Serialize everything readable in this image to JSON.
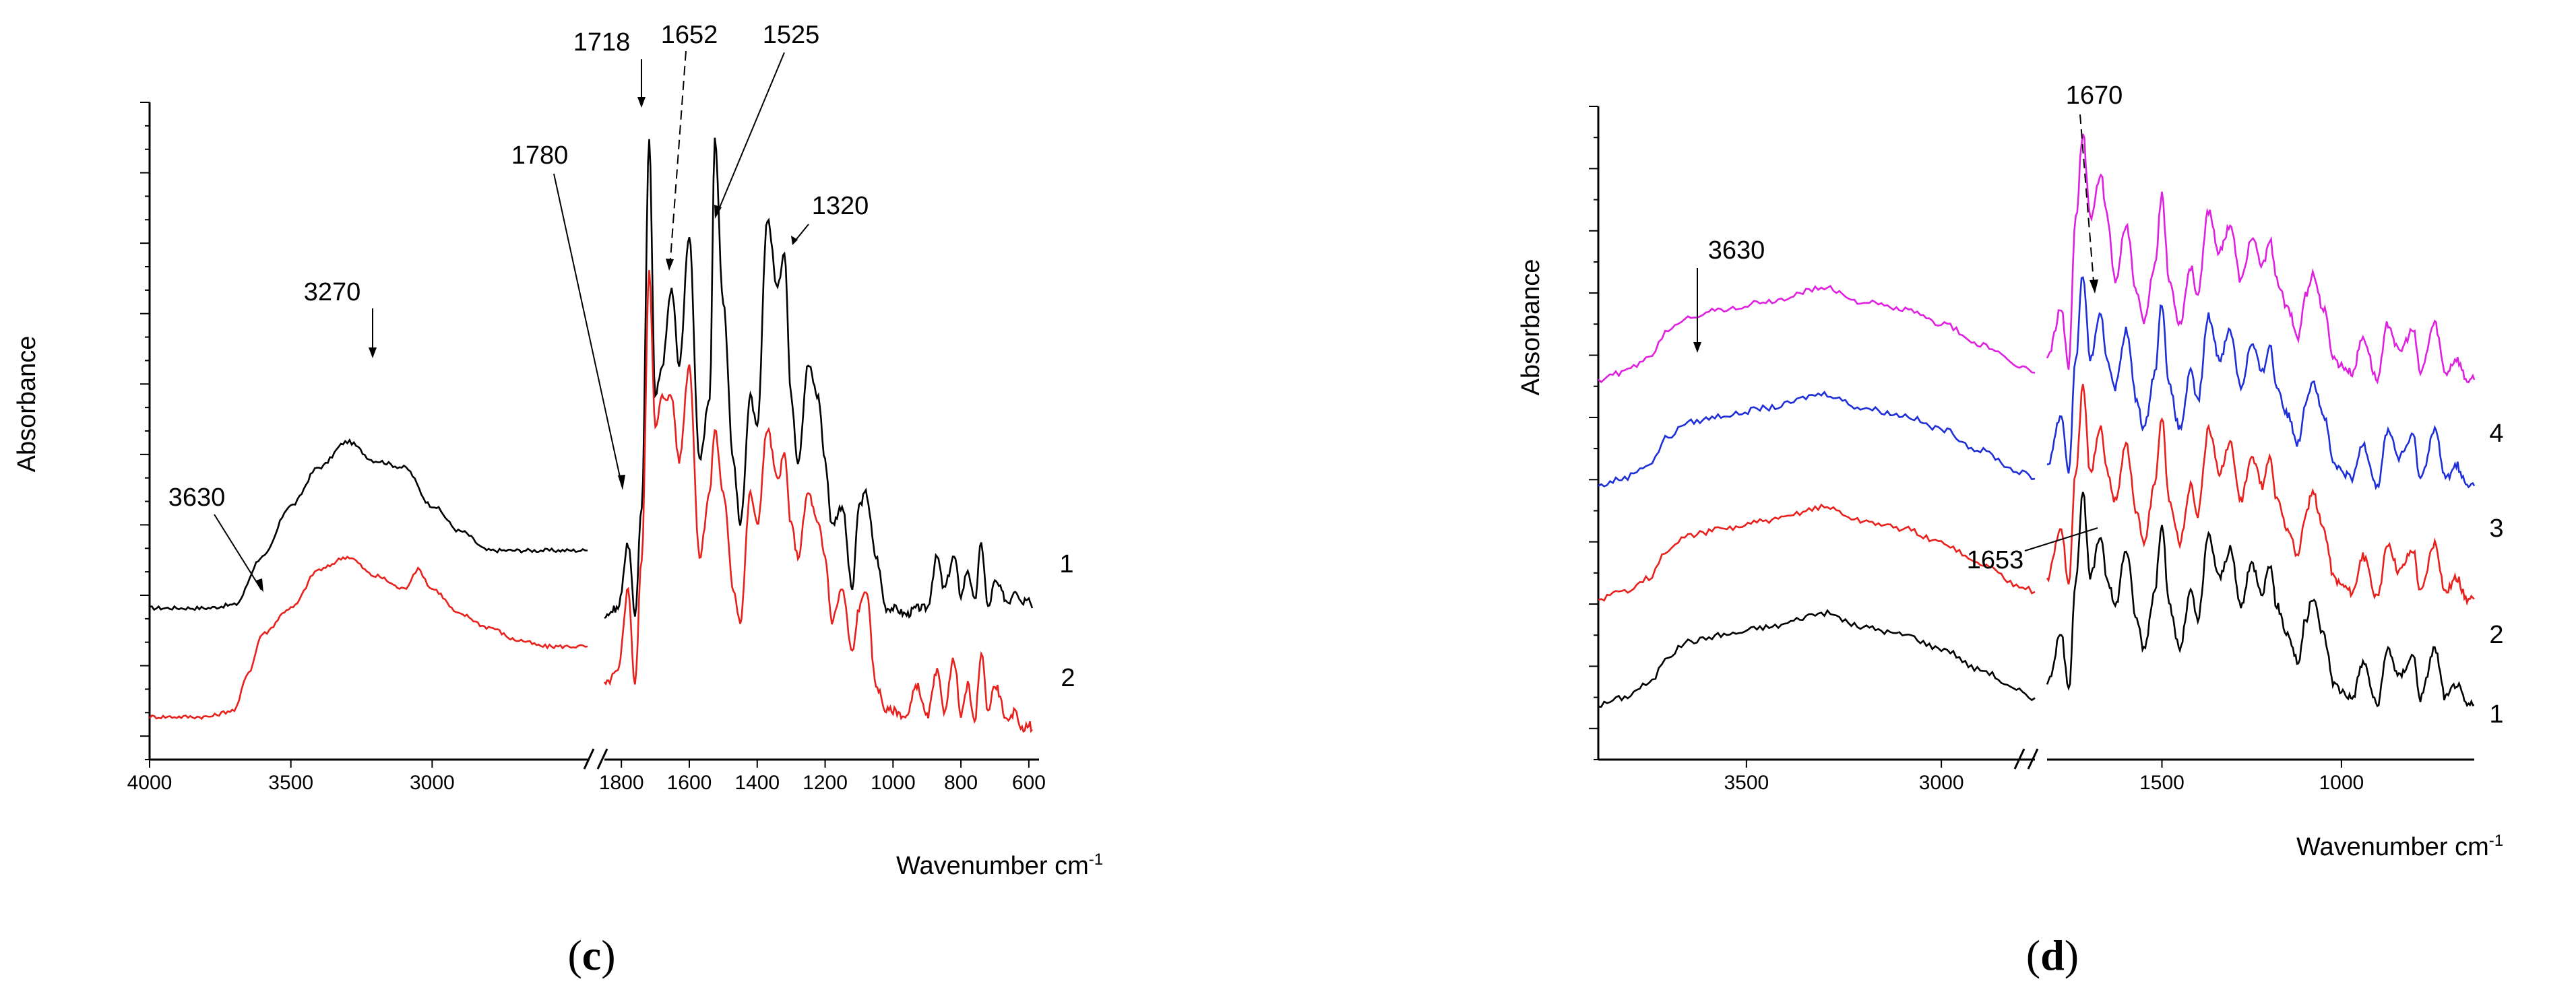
{
  "chart_data": [
    {
      "panel_label": "c",
      "type": "line",
      "title": "",
      "xlabel": "Wavenumber cm",
      "xlabel_superscript": "-1",
      "ylabel": "Absorbance",
      "x_axis_break": true,
      "segments": [
        {
          "xlim": [
            4000,
            2450
          ],
          "ticks": [
            "4000",
            "3500",
            "3000"
          ],
          "tick_values": [
            4000,
            3500,
            3000
          ]
        },
        {
          "xlim": [
            1850,
            570
          ],
          "ticks": [
            "1800",
            "1600",
            "1400",
            "1200",
            "1000",
            "800",
            "600"
          ],
          "tick_values": [
            1800,
            1600,
            1400,
            1200,
            1000,
            800,
            600
          ]
        }
      ],
      "series": [
        {
          "name": "1",
          "color": "#000000",
          "hi": [
            [
              4000,
              0.22
            ],
            [
              3800,
              0.22
            ],
            [
              3700,
              0.225
            ],
            [
              3600,
              0.3
            ],
            [
              3500,
              0.38
            ],
            [
              3400,
              0.44
            ],
            [
              3300,
              0.48
            ],
            [
              3200,
              0.45
            ],
            [
              3100,
              0.44
            ],
            [
              3000,
              0.38
            ],
            [
              2900,
              0.34
            ],
            [
              2800,
              0.31
            ],
            [
              2700,
              0.31
            ],
            [
              2600,
              0.31
            ],
            [
              2500,
              0.31
            ],
            [
              2450,
              0.31
            ]
          ],
          "lo": [
            [
              1850,
              0.21
            ],
            [
              1810,
              0.22
            ],
            [
              1780,
              0.32
            ],
            [
              1760,
              0.21
            ],
            [
              1740,
              0.38
            ],
            [
              1718,
              0.95
            ],
            [
              1700,
              0.55
            ],
            [
              1680,
              0.6
            ],
            [
              1652,
              0.72
            ],
            [
              1630,
              0.6
            ],
            [
              1600,
              0.8
            ],
            [
              1570,
              0.45
            ],
            [
              1540,
              0.55
            ],
            [
              1525,
              0.95
            ],
            [
              1500,
              0.7
            ],
            [
              1470,
              0.45
            ],
            [
              1450,
              0.35
            ],
            [
              1420,
              0.55
            ],
            [
              1400,
              0.5
            ],
            [
              1370,
              0.83
            ],
            [
              1340,
              0.72
            ],
            [
              1320,
              0.78
            ],
            [
              1300,
              0.55
            ],
            [
              1280,
              0.45
            ],
            [
              1250,
              0.6
            ],
            [
              1220,
              0.55
            ],
            [
              1200,
              0.45
            ],
            [
              1180,
              0.35
            ],
            [
              1150,
              0.38
            ],
            [
              1120,
              0.25
            ],
            [
              1100,
              0.38
            ],
            [
              1080,
              0.4
            ],
            [
              1050,
              0.3
            ],
            [
              1020,
              0.22
            ],
            [
              1000,
              0.22
            ],
            [
              960,
              0.21
            ],
            [
              930,
              0.22
            ],
            [
              900,
              0.22
            ],
            [
              870,
              0.3
            ],
            [
              850,
              0.25
            ],
            [
              820,
              0.3
            ],
            [
              800,
              0.24
            ],
            [
              780,
              0.28
            ],
            [
              760,
              0.23
            ],
            [
              740,
              0.32
            ],
            [
              720,
              0.22
            ],
            [
              700,
              0.26
            ],
            [
              660,
              0.23
            ],
            [
              640,
              0.25
            ],
            [
              620,
              0.23
            ],
            [
              600,
              0.24
            ],
            [
              590,
              0.22
            ]
          ]
        },
        {
          "name": "2",
          "color": "#e8211d",
          "hi": [
            [
              4000,
              0.05
            ],
            [
              3800,
              0.05
            ],
            [
              3700,
              0.06
            ],
            [
              3650,
              0.12
            ],
            [
              3600,
              0.18
            ],
            [
              3500,
              0.22
            ],
            [
              3400,
              0.28
            ],
            [
              3300,
              0.3
            ],
            [
              3200,
              0.27
            ],
            [
              3100,
              0.25
            ],
            [
              3050,
              0.28
            ],
            [
              3000,
              0.25
            ],
            [
              2900,
              0.21
            ],
            [
              2800,
              0.19
            ],
            [
              2700,
              0.17
            ],
            [
              2600,
              0.16
            ],
            [
              2500,
              0.16
            ],
            [
              2450,
              0.16
            ]
          ],
          "lo": [
            [
              1850,
              0.1
            ],
            [
              1810,
              0.12
            ],
            [
              1780,
              0.25
            ],
            [
              1760,
              0.1
            ],
            [
              1740,
              0.3
            ],
            [
              1718,
              0.75
            ],
            [
              1700,
              0.5
            ],
            [
              1680,
              0.55
            ],
            [
              1652,
              0.55
            ],
            [
              1630,
              0.45
            ],
            [
              1600,
              0.6
            ],
            [
              1570,
              0.3
            ],
            [
              1540,
              0.4
            ],
            [
              1525,
              0.5
            ],
            [
              1500,
              0.4
            ],
            [
              1470,
              0.25
            ],
            [
              1450,
              0.2
            ],
            [
              1420,
              0.4
            ],
            [
              1400,
              0.35
            ],
            [
              1370,
              0.5
            ],
            [
              1340,
              0.42
            ],
            [
              1320,
              0.46
            ],
            [
              1300,
              0.35
            ],
            [
              1280,
              0.3
            ],
            [
              1250,
              0.4
            ],
            [
              1220,
              0.35
            ],
            [
              1200,
              0.3
            ],
            [
              1180,
              0.2
            ],
            [
              1150,
              0.25
            ],
            [
              1120,
              0.15
            ],
            [
              1100,
              0.22
            ],
            [
              1080,
              0.25
            ],
            [
              1050,
              0.1
            ],
            [
              1020,
              0.06
            ],
            [
              1000,
              0.06
            ],
            [
              960,
              0.05
            ],
            [
              930,
              0.1
            ],
            [
              900,
              0.05
            ],
            [
              870,
              0.12
            ],
            [
              850,
              0.06
            ],
            [
              820,
              0.14
            ],
            [
              800,
              0.05
            ],
            [
              780,
              0.1
            ],
            [
              760,
              0.04
            ],
            [
              740,
              0.15
            ],
            [
              720,
              0.06
            ],
            [
              700,
              0.1
            ],
            [
              660,
              0.04
            ],
            [
              640,
              0.06
            ],
            [
              620,
              0.03
            ],
            [
              600,
              0.04
            ],
            [
              590,
              0.03
            ]
          ]
        }
      ],
      "annotations": [
        {
          "text": "3270",
          "x": 3270
        },
        {
          "text": "3630",
          "x": 3630
        },
        {
          "text": "1780",
          "x": 1780
        },
        {
          "text": "1718",
          "x": 1718
        },
        {
          "text": "1652",
          "x": 1652
        },
        {
          "text": "1525",
          "x": 1525
        },
        {
          "text": "1320",
          "x": 1320
        }
      ]
    },
    {
      "panel_label": "d",
      "type": "line",
      "title": "",
      "xlabel": "Wavenumber cm",
      "xlabel_superscript": "-1",
      "ylabel": "Absorbance",
      "x_axis_break": true,
      "segments": [
        {
          "xlim": [
            3880,
            2760
          ],
          "ticks": [
            "3500",
            "3000"
          ],
          "tick_values": [
            3500,
            3000
          ]
        },
        {
          "xlim": [
            1820,
            630
          ],
          "ticks": [
            "1500",
            "1000"
          ],
          "tick_values": [
            1500,
            1000
          ]
        }
      ],
      "series": [
        {
          "name": "1",
          "color": "#000000",
          "offset": 0.0
        },
        {
          "name": "2",
          "color": "#e8211d",
          "offset": 0.15
        },
        {
          "name": "3",
          "color": "#1f2fd8",
          "offset": 0.31
        },
        {
          "name": "4",
          "color": "#e020e0",
          "offset": 0.46
        }
      ],
      "profile_hi": [
        [
          3880,
          0.02
        ],
        [
          3820,
          0.03
        ],
        [
          3750,
          0.05
        ],
        [
          3700,
          0.09
        ],
        [
          3650,
          0.11
        ],
        [
          3550,
          0.12
        ],
        [
          3450,
          0.13
        ],
        [
          3300,
          0.15
        ],
        [
          3200,
          0.13
        ],
        [
          3100,
          0.12
        ],
        [
          3000,
          0.1
        ],
        [
          2900,
          0.07
        ],
        [
          2800,
          0.04
        ],
        [
          2760,
          0.03
        ]
      ],
      "profile_lo": [
        [
          1820,
          0.05
        ],
        [
          1780,
          0.12
        ],
        [
          1760,
          0.04
        ],
        [
          1740,
          0.2
        ],
        [
          1720,
          0.32
        ],
        [
          1700,
          0.2
        ],
        [
          1670,
          0.26
        ],
        [
          1653,
          0.2
        ],
        [
          1630,
          0.16
        ],
        [
          1600,
          0.24
        ],
        [
          1570,
          0.14
        ],
        [
          1550,
          0.1
        ],
        [
          1520,
          0.18
        ],
        [
          1500,
          0.28
        ],
        [
          1480,
          0.16
        ],
        [
          1450,
          0.1
        ],
        [
          1420,
          0.18
        ],
        [
          1400,
          0.14
        ],
        [
          1370,
          0.26
        ],
        [
          1340,
          0.2
        ],
        [
          1310,
          0.24
        ],
        [
          1280,
          0.16
        ],
        [
          1250,
          0.22
        ],
        [
          1220,
          0.18
        ],
        [
          1200,
          0.22
        ],
        [
          1180,
          0.16
        ],
        [
          1150,
          0.12
        ],
        [
          1120,
          0.08
        ],
        [
          1100,
          0.14
        ],
        [
          1080,
          0.17
        ],
        [
          1050,
          0.12
        ],
        [
          1020,
          0.05
        ],
        [
          1000,
          0.04
        ],
        [
          970,
          0.03
        ],
        [
          940,
          0.08
        ],
        [
          900,
          0.02
        ],
        [
          870,
          0.1
        ],
        [
          840,
          0.06
        ],
        [
          800,
          0.09
        ],
        [
          780,
          0.03
        ],
        [
          740,
          0.1
        ],
        [
          710,
          0.03
        ],
        [
          680,
          0.05
        ],
        [
          650,
          0.02
        ],
        [
          630,
          0.02
        ]
      ],
      "annotations": [
        {
          "text": "3630",
          "x": 3630
        },
        {
          "text": "1670",
          "x": 1670
        },
        {
          "text": "1653",
          "x": 1653
        }
      ]
    }
  ]
}
